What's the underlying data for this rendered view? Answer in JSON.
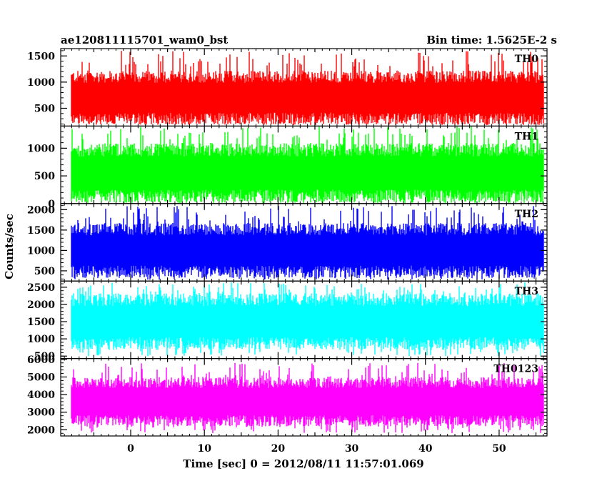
{
  "chart_data": {
    "type": "line",
    "title_left": "ae120811115701_wam0_bst",
    "title_right": "Bin time: 1.5625E-2 s",
    "xlabel": "Time [sec] 0 = 2012/08/11 11:57:01.069",
    "ylabel": "Counts/sec",
    "xlim": [
      -9.5,
      56.5
    ],
    "data_x_range": [
      -8,
      56
    ],
    "x_ticks": [
      0,
      10,
      20,
      30,
      40,
      50
    ],
    "x_tick_labels": [
      "0",
      "10",
      "20",
      "30",
      "40",
      "50"
    ],
    "panels": [
      {
        "label": "TH0",
        "color": "#ff0000",
        "ylim": [
          160,
          1640
        ],
        "y_ticks": [
          500,
          1000,
          1500
        ],
        "y_tick_labels": [
          "500",
          "1000",
          "1500"
        ],
        "mean": 700,
        "low": 260,
        "high": 1300,
        "spike": 1600
      },
      {
        "label": "TH1",
        "color": "#00ff00",
        "ylim": [
          0,
          1400
        ],
        "y_ticks": [
          0,
          500,
          1000
        ],
        "y_tick_labels": [
          "0",
          "500",
          "1000"
        ],
        "mean": 550,
        "low": 60,
        "high": 1150,
        "spike": 1400
      },
      {
        "label": "TH2",
        "color": "#0000ff",
        "ylim": [
          250,
          2150
        ],
        "y_ticks": [
          500,
          1000,
          1500,
          2000
        ],
        "y_tick_labels": [
          "500",
          "1000",
          "1500",
          "2000"
        ],
        "mean": 1000,
        "low": 350,
        "high": 1700,
        "spike": 2100
      },
      {
        "label": "TH3",
        "color": "#00ffff",
        "ylim": [
          430,
          2680
        ],
        "y_ticks": [
          500,
          1000,
          1500,
          2000,
          2500
        ],
        "y_tick_labels": [
          "500",
          "1000",
          "1500",
          "2000",
          "2500"
        ],
        "mean": 1500,
        "low": 650,
        "high": 2300,
        "spike": 2650
      },
      {
        "label": "TH0123",
        "color": "#ff00ff",
        "ylim": [
          1650,
          6050
        ],
        "y_ticks": [
          2000,
          3000,
          4000,
          5000,
          6000
        ],
        "y_tick_labels": [
          "2000",
          "3000",
          "4000",
          "5000",
          "6000"
        ],
        "mean": 3600,
        "low": 2200,
        "high": 5000,
        "spike": 5800
      }
    ]
  }
}
